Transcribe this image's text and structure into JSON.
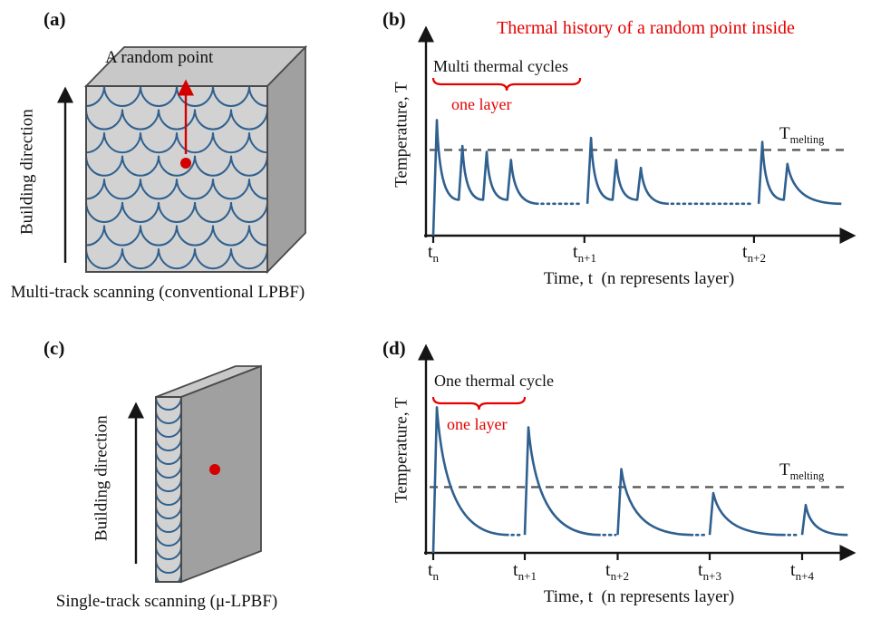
{
  "colors": {
    "curve_blue": "#2f608f",
    "accent_red": "#e60000",
    "arrow_red": "#d40000",
    "melting_line_gray": "#595959",
    "face_front": "#d2d2d2",
    "face_top": "#c8c8c8",
    "face_side": "#a0a0a0"
  },
  "panels": {
    "a": {
      "tag": "(a)",
      "random_point_label": "A random point",
      "building_direction_label": "Building direction",
      "caption": "Multi-track scanning (conventional LPBF)"
    },
    "b": {
      "tag": "(b)",
      "title": "Thermal history of a random point inside",
      "cycles_label": "Multi thermal cycles",
      "layer_label": "one layer",
      "ylabel": "Temperature, T",
      "xlabel": "Time, t  (n represents layer)",
      "melting_base": "T",
      "melting_sub": "melting",
      "ticks": [
        {
          "base": "t",
          "sub": "n"
        },
        {
          "base": "t",
          "sub": "n+1"
        },
        {
          "base": "t",
          "sub": "n+2"
        }
      ]
    },
    "c": {
      "tag": "(c)",
      "building_direction_label": "Building direction",
      "caption": "Single-track scanning (μ-LPBF)"
    },
    "d": {
      "tag": "(d)",
      "cycle_label": "One thermal cycle",
      "layer_label": "one layer",
      "ylabel": "Temperature, T",
      "xlabel": "Time, t  (n represents layer)",
      "melting_base": "T",
      "melting_sub": "melting",
      "ticks": [
        {
          "base": "t",
          "sub": "n"
        },
        {
          "base": "t",
          "sub": "n+1"
        },
        {
          "base": "t",
          "sub": "n+2"
        },
        {
          "base": "t",
          "sub": "n+3"
        },
        {
          "base": "t",
          "sub": "n+4"
        }
      ]
    }
  },
  "chart_data": [
    {
      "type": "line",
      "panel": "b",
      "title": "Thermal history of a random point inside",
      "xlabel": "Time, t (n represents layer)",
      "ylabel": "Temperature, T",
      "x_range": [
        0,
        100
      ],
      "y_range": [
        0,
        100
      ],
      "grid": false,
      "melting_level": 43,
      "melting_label": "T_melting",
      "baseline_level": 0,
      "inter_spike_level": 18,
      "tail_level": 16,
      "tick_x": [
        1.7,
        37.2,
        77.0
      ],
      "tick_labels": [
        "t_n",
        "t_(n+1)",
        "t_(n+2)"
      ],
      "annotations": [
        "Multi thermal cycles",
        "one layer"
      ],
      "brace_span_x": [
        1.7,
        36.2
      ],
      "groups": [
        {
          "spike_x": [
            1.7,
            7.7,
            13.4,
            19.1
          ],
          "peaks": [
            58,
            45,
            42,
            38
          ],
          "tail_end_x": 26.5,
          "dots_end_x": 36.3
        },
        {
          "spike_x": [
            37.9,
            43.8,
            49.6
          ],
          "peaks": [
            49,
            38,
            34
          ],
          "tail_end_x": 57.0,
          "dots_end_x": 76.2
        },
        {
          "spike_x": [
            78.1,
            84.0
          ],
          "peaks": [
            47,
            36
          ],
          "tail_end_x": 97.5,
          "dots_end_x": null
        }
      ]
    },
    {
      "type": "line",
      "panel": "d",
      "title": "",
      "xlabel": "Time, t (n represents layer)",
      "ylabel": "Temperature, T",
      "x_range": [
        0,
        100
      ],
      "y_range": [
        0,
        100
      ],
      "grid": false,
      "melting_level": 33,
      "melting_label": "T_melting",
      "baseline_level": 0,
      "inter_spike_level": 9,
      "tail_level": 9,
      "tick_x": [
        1.7,
        23.2,
        45.0,
        66.6,
        88.3
      ],
      "tick_labels": [
        "t_n",
        "t_(n+1)",
        "t_(n+2)",
        "t_(n+3)",
        "t_(n+4)"
      ],
      "annotations": [
        "One thermal cycle",
        "one layer"
      ],
      "brace_span_x": [
        1.7,
        23.2
      ],
      "groups": [
        {
          "spike_x": [
            1.7
          ],
          "peaks": [
            73
          ],
          "tail_end_x": 19.5,
          "dots_end_x": 22.7
        },
        {
          "spike_x": [
            23.2
          ],
          "peaks": [
            63
          ],
          "tail_end_x": 41.0,
          "dots_end_x": 44.5
        },
        {
          "spike_x": [
            45.0
          ],
          "peaks": [
            42
          ],
          "tail_end_x": 62.8,
          "dots_end_x": 66.1
        },
        {
          "spike_x": [
            66.6
          ],
          "peaks": [
            30
          ],
          "tail_end_x": 84.4,
          "dots_end_x": 87.8
        },
        {
          "spike_x": [
            88.3
          ],
          "peaks": [
            24
          ],
          "tail_end_x": 99.0,
          "dots_end_x": null
        }
      ]
    }
  ]
}
